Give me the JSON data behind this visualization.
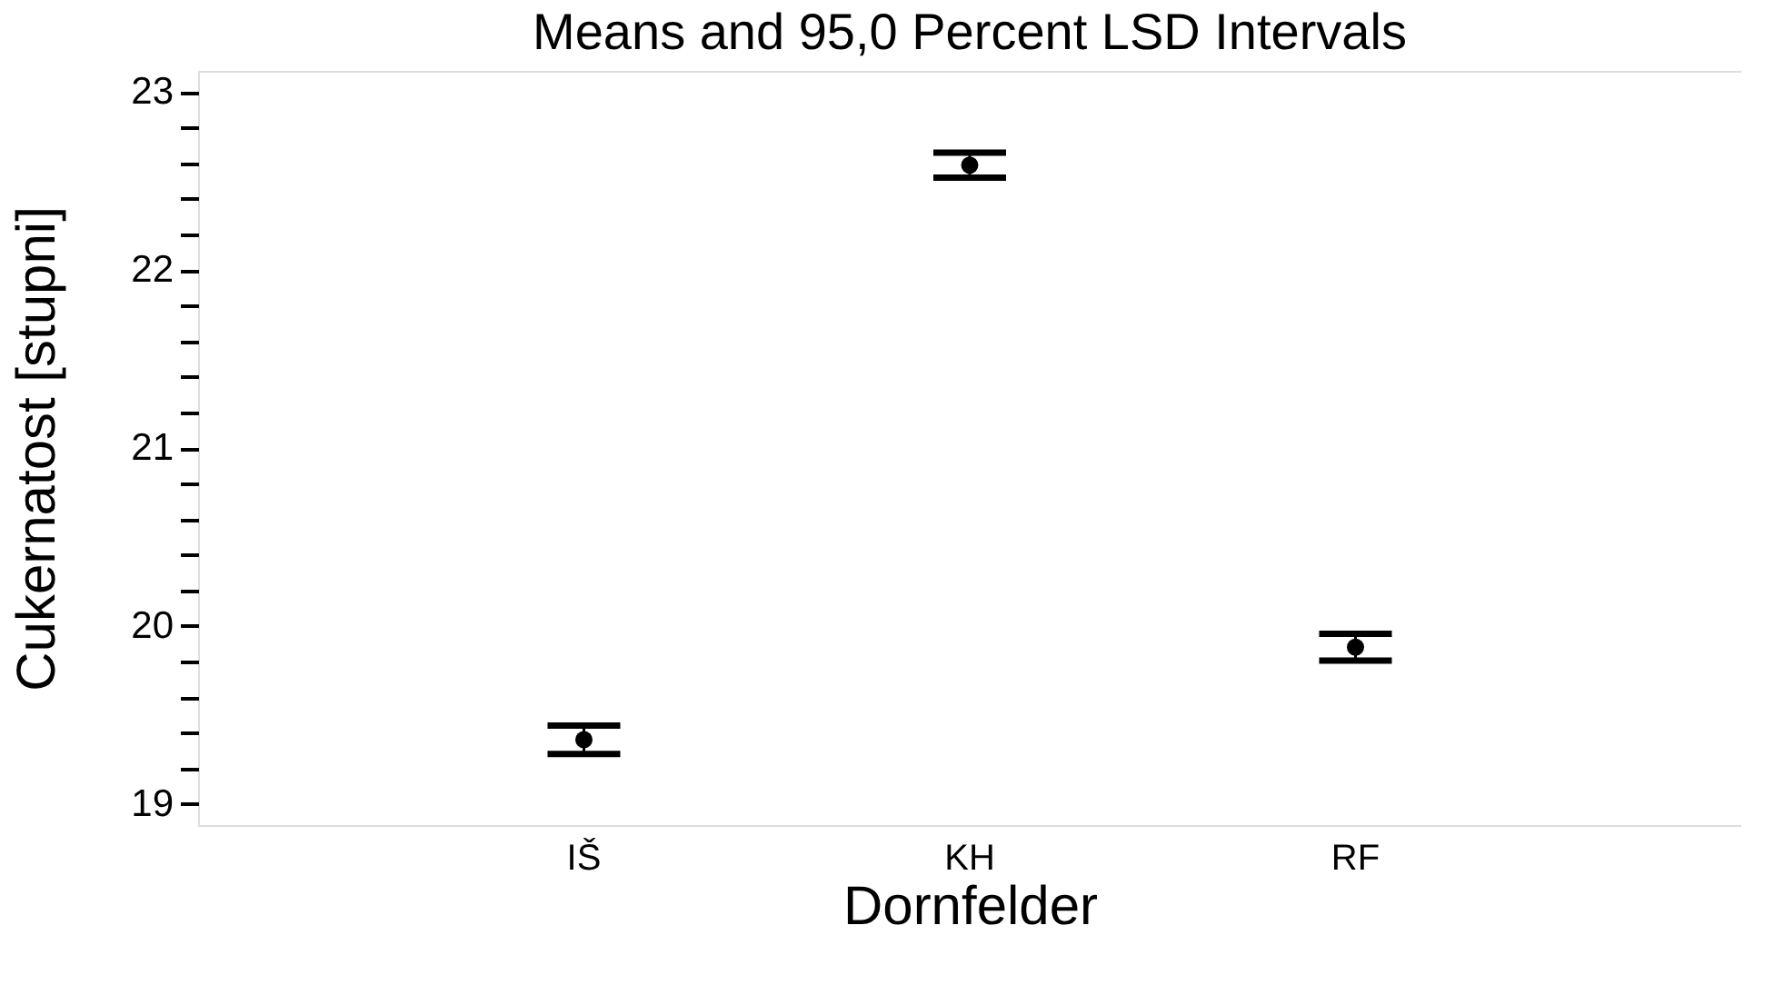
{
  "chart_data": {
    "type": "scatter",
    "title": "Means and 95,0 Percent LSD Intervals",
    "xlabel": "Dornfelder",
    "ylabel": "Cukernatost [stupni]",
    "categories": [
      "IŠ",
      "KH",
      "RF"
    ],
    "values": [
      19.36,
      22.59,
      19.88
    ],
    "errors": [
      0.08,
      0.07,
      0.075
    ],
    "color": "#000000",
    "ylim": [
      18.88,
      23.12
    ],
    "yticks": [
      19,
      {
        "value": 19.2,
        "label": null
      },
      {
        "value": 19.4,
        "label": null
      },
      {
        "value": 19.6,
        "label": null
      },
      {
        "value": 19.8,
        "label": null
      },
      20,
      {
        "value": 20.2,
        "label": null
      },
      {
        "value": 20.4,
        "label": null
      },
      {
        "value": 20.6,
        "label": null
      },
      {
        "value": 20.8,
        "label": null
      },
      21,
      {
        "value": 21.2,
        "label": null
      },
      {
        "value": 21.4,
        "label": null
      },
      {
        "value": 21.6,
        "label": null
      },
      {
        "value": 21.8,
        "label": null
      },
      22,
      {
        "value": 22.2,
        "label": null
      },
      {
        "value": 22.4,
        "label": null
      },
      {
        "value": 22.6,
        "label": null
      },
      {
        "value": 22.8,
        "label": null
      },
      23
    ],
    "marker": "circle",
    "grid": false,
    "legend": false
  }
}
